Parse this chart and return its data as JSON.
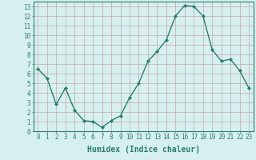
{
  "x": [
    0,
    1,
    2,
    3,
    4,
    5,
    6,
    7,
    8,
    9,
    10,
    11,
    12,
    13,
    14,
    15,
    16,
    17,
    18,
    19,
    20,
    21,
    22,
    23
  ],
  "y": [
    6.5,
    5.5,
    2.8,
    4.5,
    2.2,
    1.1,
    1.0,
    0.4,
    1.1,
    1.6,
    3.5,
    5.0,
    7.3,
    8.3,
    9.5,
    12.0,
    13.1,
    13.0,
    12.0,
    8.5,
    7.3,
    7.5,
    6.3,
    4.5
  ],
  "line_color": "#2e7d6e",
  "marker": "D",
  "marker_size": 2.0,
  "bg_color": "#d6f0ef",
  "grid_color": "#c4a8a8",
  "xlabel": "Humidex (Indice chaleur)",
  "xlabel_fontsize": 7,
  "xlim": [
    -0.5,
    23.5
  ],
  "ylim": [
    0,
    13.5
  ],
  "yticks": [
    0,
    1,
    2,
    3,
    4,
    5,
    6,
    7,
    8,
    9,
    10,
    11,
    12,
    13
  ],
  "xticks": [
    0,
    1,
    2,
    3,
    4,
    5,
    6,
    7,
    8,
    9,
    10,
    11,
    12,
    13,
    14,
    15,
    16,
    17,
    18,
    19,
    20,
    21,
    22,
    23
  ],
  "tick_fontsize": 5.5,
  "line_width": 1.0
}
